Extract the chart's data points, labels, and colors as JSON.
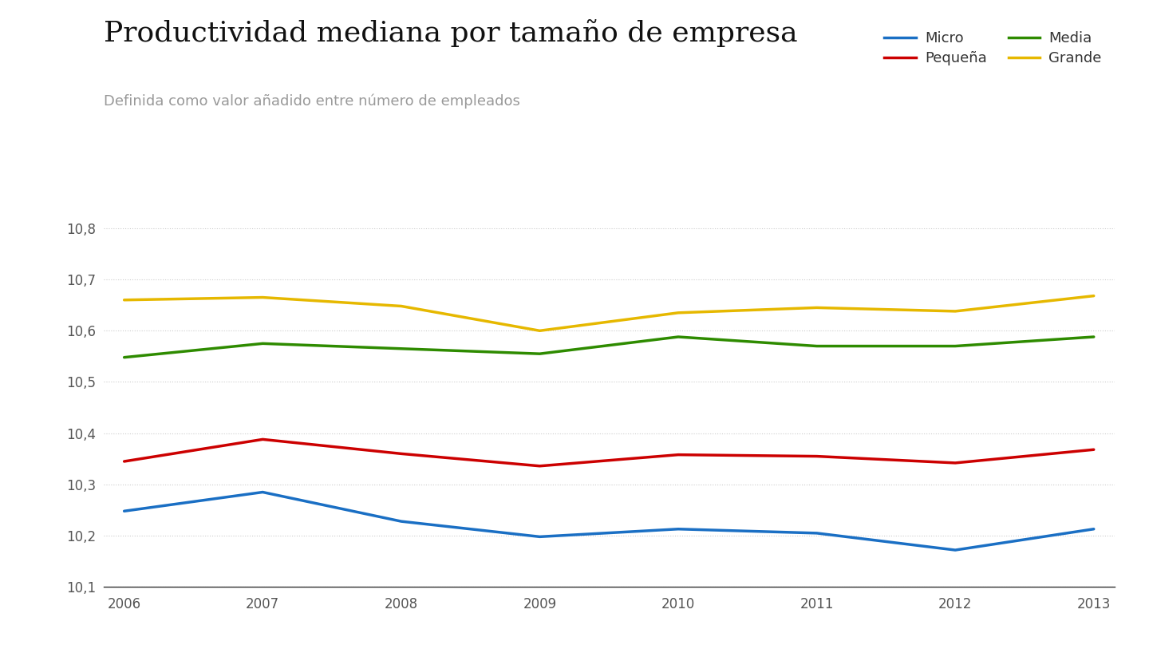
{
  "title": "Productividad mediana por tamaño de empresa",
  "subtitle": "Definida como valor añadido entre número de empleados",
  "years": [
    2006,
    2007,
    2008,
    2009,
    2010,
    2011,
    2012,
    2013
  ],
  "series": {
    "Micro": {
      "color": "#1a6fc4",
      "values": [
        10.248,
        10.285,
        10.228,
        10.198,
        10.213,
        10.205,
        10.172,
        10.213
      ]
    },
    "Pequeña": {
      "color": "#cc0000",
      "values": [
        10.345,
        10.388,
        10.36,
        10.336,
        10.358,
        10.355,
        10.342,
        10.368
      ]
    },
    "Media": {
      "color": "#2e8b00",
      "values": [
        10.548,
        10.575,
        10.565,
        10.555,
        10.588,
        10.57,
        10.57,
        10.588
      ]
    },
    "Grande": {
      "color": "#e6b800",
      "values": [
        10.66,
        10.665,
        10.648,
        10.6,
        10.635,
        10.645,
        10.638,
        10.668
      ]
    }
  },
  "ylim": [
    10.1,
    10.83
  ],
  "yticks": [
    10.1,
    10.2,
    10.3,
    10.4,
    10.5,
    10.6,
    10.7,
    10.8
  ],
  "background_color": "#ffffff",
  "grid_color": "#cccccc",
  "line_width": 2.5,
  "title_fontsize": 26,
  "subtitle_fontsize": 13,
  "legend_fontsize": 13,
  "tick_fontsize": 12
}
